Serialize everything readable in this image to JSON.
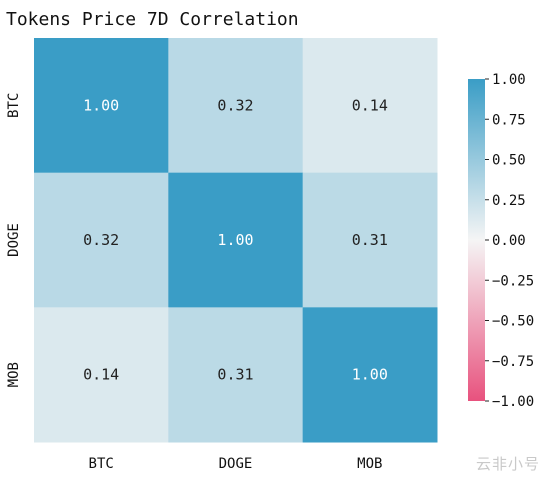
{
  "chart_data": {
    "type": "heatmap",
    "title": "Tokens Price 7D Correlation",
    "x_labels": [
      "BTC",
      "DOGE",
      "MOB"
    ],
    "y_labels": [
      "BTC",
      "DOGE",
      "MOB"
    ],
    "values": [
      [
        1.0,
        0.32,
        0.14
      ],
      [
        0.32,
        1.0,
        0.31
      ],
      [
        0.14,
        0.31,
        1.0
      ]
    ],
    "cell_labels": [
      [
        "1.00",
        "0.32",
        "0.14"
      ],
      [
        "0.32",
        "1.00",
        "0.31"
      ],
      [
        "0.14",
        "0.31",
        "1.00"
      ]
    ],
    "colorbar": {
      "range": [
        -1.0,
        1.0
      ],
      "ticks": [
        "1.00",
        "0.75",
        "0.50",
        "0.25",
        "0.00",
        "−0.25",
        "−0.50",
        "−0.75",
        "−1.00"
      ],
      "tick_values": [
        1.0,
        0.75,
        0.5,
        0.25,
        0.0,
        -0.25,
        -0.5,
        -0.75,
        -1.0
      ],
      "low_color": "#e8527e",
      "mid_color": "#f5f5f5",
      "high_color": "#3a9dc6"
    }
  },
  "watermark": "云非小号"
}
